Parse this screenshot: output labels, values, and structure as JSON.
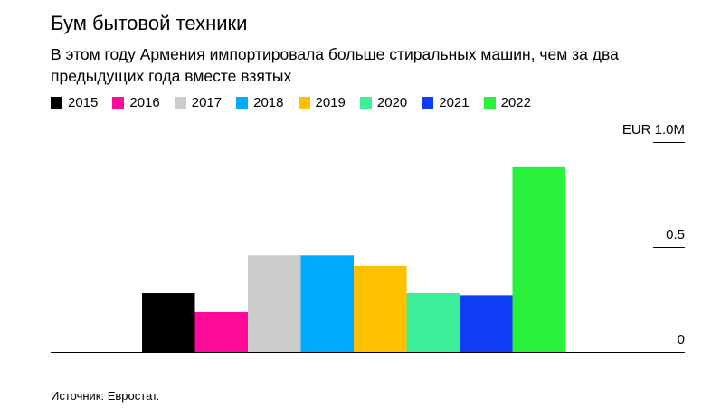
{
  "title": "Бум бытовой техники",
  "subtitle": "В этом году Армения импортировала больше стиральных машин, чем за два предыдущих года вместе взятых",
  "source": "Источник: Евростат.",
  "chart_data": {
    "type": "bar",
    "title": "Бум бытовой техники",
    "subtitle": "В этом году Армения импортировала больше стиральных машин, чем за два предыдущих года вместе взятых",
    "categories": [
      "2015",
      "2016",
      "2017",
      "2018",
      "2019",
      "2020",
      "2021",
      "2022"
    ],
    "values": [
      0.28,
      0.19,
      0.46,
      0.46,
      0.41,
      0.28,
      0.27,
      0.88
    ],
    "colors": [
      "#000000",
      "#ff0a9b",
      "#cccccc",
      "#00aaff",
      "#ffc000",
      "#3cf09a",
      "#0f3cf5",
      "#29f03a"
    ],
    "ylim": [
      0,
      1.0
    ],
    "yticks": [
      {
        "value": 0,
        "label": "0"
      },
      {
        "value": 0.5,
        "label": "0.5"
      },
      {
        "value": 1.0,
        "label": "EUR 1.0M"
      }
    ],
    "legend": "top-left",
    "y_axis_side": "right",
    "grid": false
  }
}
